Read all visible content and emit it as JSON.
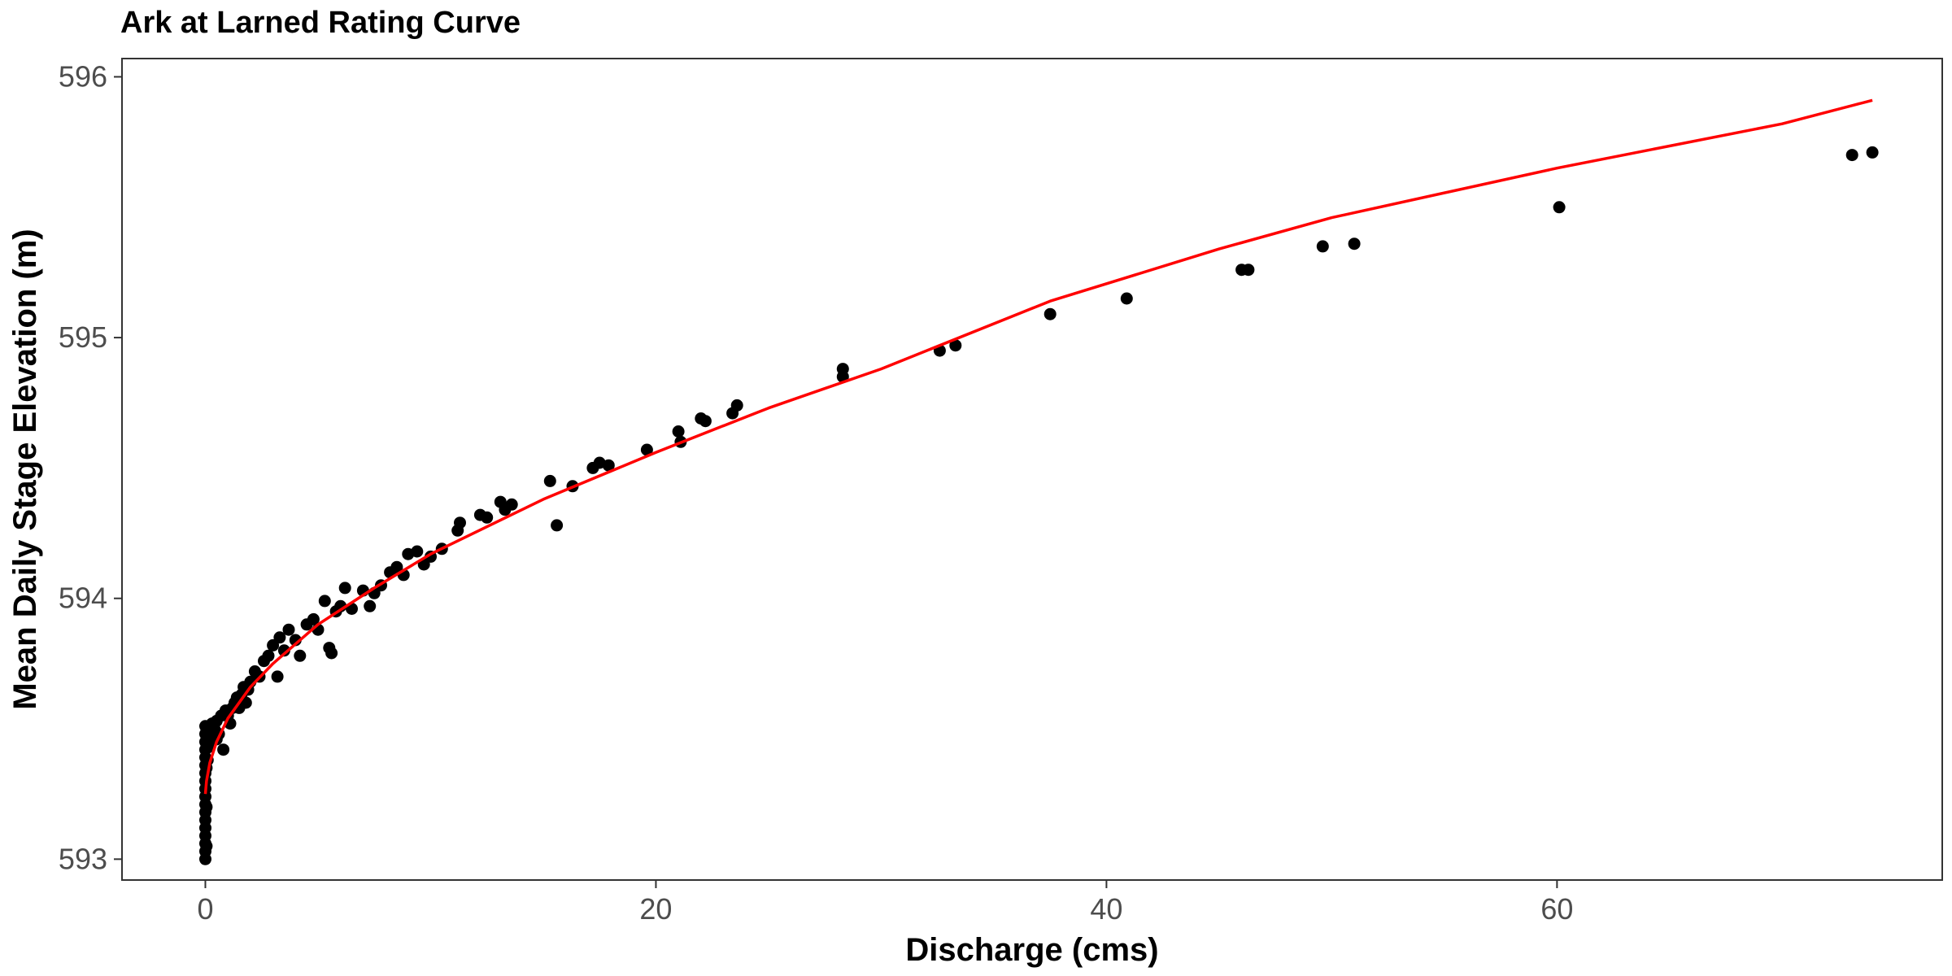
{
  "chart_data": {
    "type": "scatter",
    "title": "Ark at Larned Rating Curve",
    "xlabel": "Discharge (cms)",
    "ylabel": "Mean Daily Stage Elevation (m)",
    "xlim": [
      -3.7,
      77.1
    ],
    "ylim": [
      592.92,
      596.07
    ],
    "x_ticks": [
      0,
      20,
      40,
      60
    ],
    "y_ticks": [
      593,
      594,
      595,
      596
    ],
    "x_tick_labels": [
      "0",
      "20",
      "40",
      "60"
    ],
    "y_tick_labels": [
      "593",
      "594",
      "595",
      "596"
    ],
    "grid": false,
    "legend": "none",
    "point_color": "#000000",
    "curve_color": "#ff0000",
    "points": [
      [
        0,
        593.0
      ],
      [
        0,
        593.03
      ],
      [
        0,
        593.06
      ],
      [
        0,
        593.09
      ],
      [
        0,
        593.12
      ],
      [
        0,
        593.15
      ],
      [
        0,
        593.18
      ],
      [
        0,
        593.21
      ],
      [
        0,
        593.24
      ],
      [
        0,
        593.27
      ],
      [
        0,
        593.3
      ],
      [
        0,
        593.33
      ],
      [
        0,
        593.36
      ],
      [
        0,
        593.39
      ],
      [
        0,
        593.42
      ],
      [
        0,
        593.45
      ],
      [
        0,
        593.48
      ],
      [
        0,
        593.51
      ],
      [
        0.05,
        593.05
      ],
      [
        0.05,
        593.2
      ],
      [
        0.05,
        593.35
      ],
      [
        0.05,
        593.5
      ],
      [
        0.1,
        593.38
      ],
      [
        0.15,
        593.43
      ],
      [
        0.2,
        593.48
      ],
      [
        0.25,
        593.45
      ],
      [
        0.3,
        593.52
      ],
      [
        0.4,
        593.5
      ],
      [
        0.5,
        593.53
      ],
      [
        0.5,
        593.46
      ],
      [
        0.6,
        593.48
      ],
      [
        0.7,
        593.55
      ],
      [
        0.8,
        593.42
      ],
      [
        0.9,
        593.57
      ],
      [
        1.0,
        593.55
      ],
      [
        1.1,
        593.52
      ],
      [
        1.2,
        593.58
      ],
      [
        1.3,
        593.6
      ],
      [
        1.4,
        593.62
      ],
      [
        1.5,
        593.58
      ],
      [
        1.6,
        593.63
      ],
      [
        1.7,
        593.66
      ],
      [
        1.8,
        593.6
      ],
      [
        1.9,
        593.65
      ],
      [
        2.0,
        593.68
      ],
      [
        2.2,
        593.72
      ],
      [
        2.4,
        593.7
      ],
      [
        2.6,
        593.76
      ],
      [
        2.8,
        593.78
      ],
      [
        3.0,
        593.82
      ],
      [
        3.2,
        593.7
      ],
      [
        3.3,
        593.85
      ],
      [
        3.5,
        593.8
      ],
      [
        3.7,
        593.88
      ],
      [
        4.0,
        593.84
      ],
      [
        4.2,
        593.78
      ],
      [
        4.5,
        593.9
      ],
      [
        4.8,
        593.92
      ],
      [
        5.0,
        593.88
      ],
      [
        5.3,
        593.99
      ],
      [
        5.5,
        593.81
      ],
      [
        5.6,
        593.79
      ],
      [
        5.8,
        593.95
      ],
      [
        6.0,
        593.97
      ],
      [
        6.2,
        594.04
      ],
      [
        6.5,
        593.96
      ],
      [
        7.0,
        594.03
      ],
      [
        7.3,
        593.97
      ],
      [
        7.5,
        594.02
      ],
      [
        7.8,
        594.05
      ],
      [
        8.2,
        594.1
      ],
      [
        8.5,
        594.12
      ],
      [
        8.8,
        594.09
      ],
      [
        9.0,
        594.17
      ],
      [
        9.4,
        594.18
      ],
      [
        9.7,
        594.13
      ],
      [
        10.0,
        594.16
      ],
      [
        10.5,
        594.19
      ],
      [
        11.2,
        594.26
      ],
      [
        11.3,
        594.29
      ],
      [
        12.2,
        594.32
      ],
      [
        12.5,
        594.31
      ],
      [
        13.1,
        594.37
      ],
      [
        13.3,
        594.34
      ],
      [
        13.6,
        594.36
      ],
      [
        15.3,
        594.45
      ],
      [
        15.6,
        594.28
      ],
      [
        16.3,
        594.43
      ],
      [
        17.2,
        594.5
      ],
      [
        17.5,
        594.52
      ],
      [
        17.9,
        594.51
      ],
      [
        19.6,
        594.57
      ],
      [
        21.0,
        594.64
      ],
      [
        21.1,
        594.6
      ],
      [
        22.0,
        594.69
      ],
      [
        22.2,
        594.68
      ],
      [
        23.4,
        594.71
      ],
      [
        23.6,
        594.74
      ],
      [
        28.3,
        594.85
      ],
      [
        28.3,
        594.88
      ],
      [
        32.6,
        594.95
      ],
      [
        33.3,
        594.97
      ],
      [
        37.5,
        595.09
      ],
      [
        40.9,
        595.15
      ],
      [
        46.0,
        595.26
      ],
      [
        46.3,
        595.26
      ],
      [
        49.6,
        595.35
      ],
      [
        51.0,
        595.36
      ],
      [
        60.1,
        595.5
      ],
      [
        73.1,
        595.7
      ],
      [
        74.0,
        595.71
      ]
    ],
    "curve": [
      [
        0,
        593.25
      ],
      [
        0.05,
        593.3
      ],
      [
        0.2,
        593.37
      ],
      [
        0.5,
        593.45
      ],
      [
        1.0,
        593.54
      ],
      [
        2.0,
        593.66
      ],
      [
        3.0,
        593.75
      ],
      [
        5.0,
        593.9
      ],
      [
        7.5,
        594.04
      ],
      [
        10.0,
        594.17
      ],
      [
        15.0,
        594.38
      ],
      [
        20.0,
        594.56
      ],
      [
        25.0,
        594.73
      ],
      [
        30.0,
        594.88
      ],
      [
        37.5,
        595.14
      ],
      [
        45.0,
        595.34
      ],
      [
        50.0,
        595.46
      ],
      [
        60.0,
        595.65
      ],
      [
        70.0,
        595.82
      ],
      [
        74.0,
        595.91
      ]
    ]
  }
}
